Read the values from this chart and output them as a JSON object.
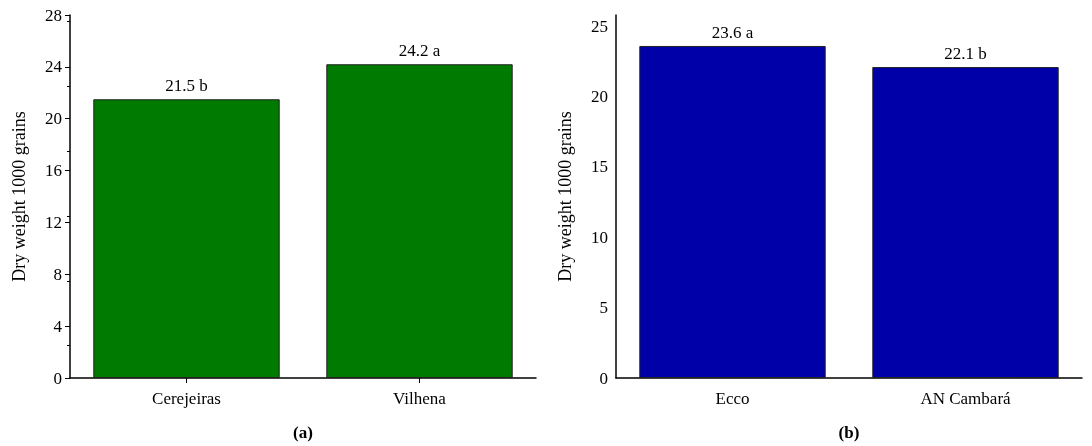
{
  "chart_data": [
    {
      "type": "bar",
      "xlabel": "(a)",
      "ylabel": "Dry weight 1000 grains",
      "categories": [
        "Cerejeiras",
        "Vilhena"
      ],
      "values": [
        21.5,
        24.2
      ],
      "value_labels": [
        "21.5 b",
        "24.2 a"
      ],
      "color": "#007a00",
      "ylim": [
        0,
        28
      ],
      "yticks": [
        0,
        4,
        8,
        12,
        16,
        20,
        24,
        28
      ],
      "grid": false
    },
    {
      "type": "bar",
      "xlabel": "(b)",
      "ylabel": "Dry weight 1000 grains",
      "categories": [
        "Ecco",
        "AN Cambará"
      ],
      "values": [
        23.6,
        22.1
      ],
      "value_labels": [
        "23.6 a",
        "22.1 b"
      ],
      "color": "#0000a8",
      "ylim": [
        0,
        25.8
      ],
      "yticks": [
        0,
        5,
        10,
        15,
        20,
        25
      ],
      "grid": false
    }
  ]
}
